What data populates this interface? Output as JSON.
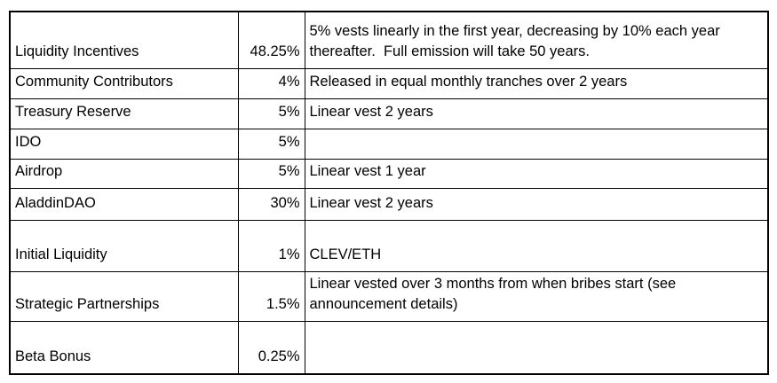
{
  "table": {
    "name": "token-allocation-table",
    "columns": [
      "category",
      "percent",
      "description"
    ],
    "rows": [
      {
        "category": "Liquidity Incentives",
        "percent": "48.25%",
        "description": "5% vests linearly in the first year, decreasing by 10% each year thereafter.  Full emission will take 50 years."
      },
      {
        "category": "Community Contributors",
        "percent": "4%",
        "description": "Released in equal monthly tranches over 2 years"
      },
      {
        "category": "Treasury Reserve",
        "percent": "5%",
        "description": "Linear vest 2 years"
      },
      {
        "category": "IDO",
        "percent": "5%",
        "description": ""
      },
      {
        "category": "Airdrop",
        "percent": "5%",
        "description": "Linear vest 1 year"
      },
      {
        "category": "AladdinDAO",
        "percent": "30%",
        "description": "Linear vest 2 years"
      },
      {
        "category": "Initial Liquidity",
        "percent": "1%",
        "description": "CLEV/ETH"
      },
      {
        "category": "Strategic Partnerships",
        "percent": "1.5%",
        "description": "Linear vested over 3 months from when bribes start (see announcement details)"
      },
      {
        "category": "Beta Bonus",
        "percent": "0.25%",
        "description": ""
      }
    ]
  }
}
